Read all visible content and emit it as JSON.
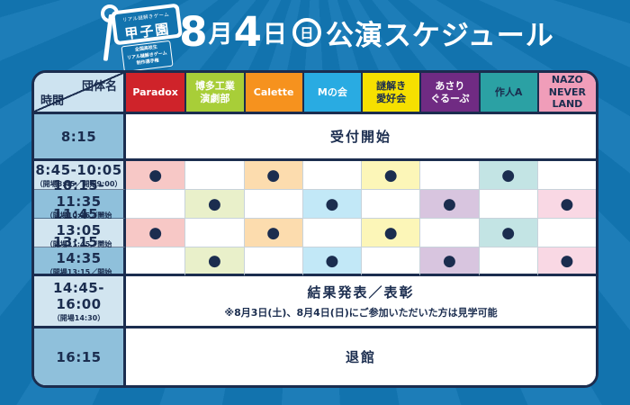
{
  "page": {
    "background": "#1273ae",
    "ray_color": "#1d7db8",
    "navy": "#1b2d4f"
  },
  "banner": {
    "logo": {
      "tagline": "リアル謎解きゲーム",
      "title": "甲子園",
      "badge": "全国高校生\nリアル謎解きゲーム\n制作選手権"
    },
    "title": {
      "num_month": "8",
      "label_month": "月",
      "num_day": "4",
      "label_day": "日",
      "weekday_badge": "日",
      "text": "公演スケジュール"
    }
  },
  "table": {
    "corner": {
      "top": "団体名",
      "bottom": "時間"
    },
    "groups": [
      {
        "name": "Paradox",
        "color": "#cf232a",
        "text_color": "#ffffff",
        "tint": "#f7c8c6"
      },
      {
        "name": "博多工業\n演劇部",
        "color": "#a8ce38",
        "text_color": "#ffffff",
        "tint": "#e9f0ca"
      },
      {
        "name": "Calette",
        "color": "#f6921e",
        "text_color": "#ffffff",
        "tint": "#fcdcae"
      },
      {
        "name": "Mの会",
        "color": "#29abe2",
        "text_color": "#ffffff",
        "tint": "#c2e8f7"
      },
      {
        "name": "謎解き\n愛好会",
        "color": "#f6e000",
        "text_color": "#1b2d4f",
        "tint": "#fcf6b8"
      },
      {
        "name": "あさり\nぐるーぷ",
        "color": "#702b83",
        "text_color": "#ffffff",
        "tint": "#d8c5df"
      },
      {
        "name": "作人A",
        "color": "#2ba1a4",
        "text_color": "#1b2d4f",
        "tint": "#c3e4e4"
      },
      {
        "name": "NAZO\nNEVER\nLAND",
        "color": "#f09db9",
        "text_color": "#1b2d4f",
        "tint": "#f9d8e4"
      }
    ],
    "rows": [
      {
        "time": "8:15",
        "sub": "",
        "time_bg": "#8fc0db",
        "label": "受付開始"
      },
      {
        "time": "8:45-10:05",
        "sub": "（開場8:45／開始9:00）",
        "time_bg": "#d2e5f0",
        "cells": [
          "●",
          "",
          "●",
          "",
          "●",
          "",
          "●",
          ""
        ],
        "cell_colors": [
          "#f7c8c6",
          "#ffffff",
          "#fcdcae",
          "#ffffff",
          "#fcf6b8",
          "#ffffff",
          "#c3e4e4",
          "#ffffff"
        ]
      },
      {
        "time": "10:15-11:35",
        "sub": "（開場10:15／開始10:30）",
        "time_bg": "#8fc0db",
        "cells": [
          "",
          "●",
          "",
          "●",
          "",
          "●",
          "",
          "●"
        ],
        "cell_colors": [
          "#ffffff",
          "#e9f0ca",
          "#ffffff",
          "#c2e8f7",
          "#ffffff",
          "#d8c5df",
          "#ffffff",
          "#f9d8e4"
        ]
      },
      {
        "time": "11:45-13:05",
        "sub": "（開場11:45／開始12:00）",
        "time_bg": "#d2e5f0",
        "cells": [
          "●",
          "",
          "●",
          "",
          "●",
          "",
          "●",
          ""
        ],
        "cell_colors": [
          "#f7c8c6",
          "#ffffff",
          "#fcdcae",
          "#ffffff",
          "#fcf6b8",
          "#ffffff",
          "#c3e4e4",
          "#ffffff"
        ]
      },
      {
        "time": "13:15-14:35",
        "sub": "（開場13:15／開始13:30）",
        "time_bg": "#8fc0db",
        "cells": [
          "",
          "●",
          "",
          "●",
          "",
          "●",
          "",
          "●"
        ],
        "cell_colors": [
          "#ffffff",
          "#e9f0ca",
          "#ffffff",
          "#c2e8f7",
          "#ffffff",
          "#d8c5df",
          "#ffffff",
          "#f9d8e4"
        ]
      },
      {
        "time": "14:45-16:00",
        "sub": "（開場14:30）",
        "time_bg": "#d2e5f0",
        "label": "結果発表／表彰",
        "note": "※8月3日(土)、8月4日(日)にご参加いただいた方は見学可能"
      },
      {
        "time": "16:15",
        "sub": "",
        "time_bg": "#8fc0db",
        "label": "退館"
      }
    ]
  }
}
